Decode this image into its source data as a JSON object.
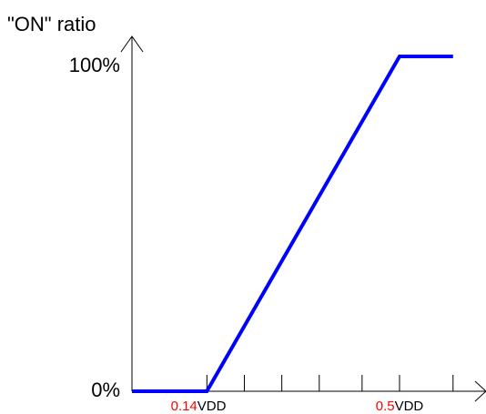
{
  "chart_data": {
    "type": "line",
    "ylabel": "\"ON\" ratio",
    "y_tick_labels": [
      "100%",
      "0%"
    ],
    "x_tick_labels": [
      {
        "value": "0.14",
        "unit": "VDD",
        "value_color": "#ff0000"
      },
      {
        "value": "0.5",
        "unit": "VDD",
        "value_color": "#ff0000"
      }
    ],
    "series": [
      {
        "color": "#0000ff",
        "x": [
          0,
          0.14,
          0.5,
          0.6
        ],
        "y": [
          0,
          0,
          100,
          100
        ]
      }
    ],
    "x_range": [
      0,
      0.7
    ],
    "y_range": [
      0,
      100
    ],
    "minor_ticks_x": [
      0.14,
      0.21,
      0.28,
      0.35,
      0.43,
      0.5,
      0.6
    ],
    "grid": false
  }
}
